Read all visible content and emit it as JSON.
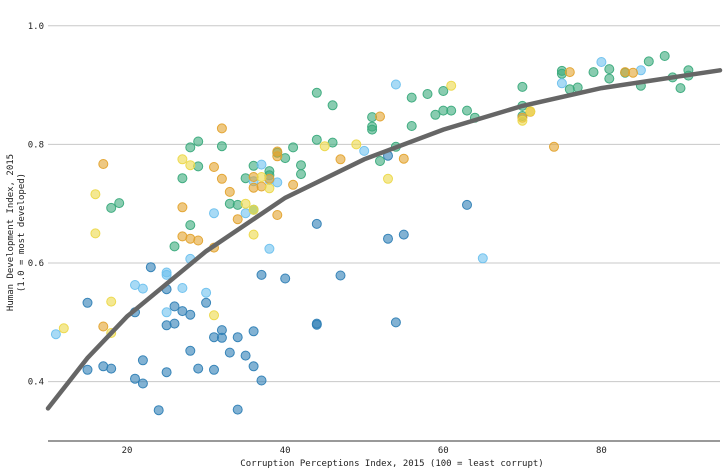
{
  "chart_data": {
    "type": "scatter",
    "title": "",
    "xlabel": "Corruption Perceptions Index, 2015 (100 = least corrupt)",
    "ylabel": "Human Development Index, 2015",
    "ylabel_sub": "(1.0 = most developed)",
    "xlim": [
      10,
      95
    ],
    "ylim": [
      0.3,
      1.03
    ],
    "x_ticks": [
      20,
      40,
      60,
      80
    ],
    "x_tick_labels": [
      "20",
      "40",
      "60",
      "80"
    ],
    "y_ticks": [
      0.4,
      0.6,
      0.8,
      1.0
    ],
    "y_tick_labels": [
      "0.4",
      "0.6",
      "0.8",
      "1.0"
    ],
    "grid": "horizontal",
    "legend": "none",
    "colors": {
      "teal": "#3aaa7c",
      "blue": "#2f7fb5",
      "lightblue": "#6ec1ee",
      "orange": "#e3a32e",
      "yellow": "#ecd84a",
      "trend": "#666666"
    },
    "trend_line": {
      "type": "logarithmic",
      "points": [
        [
          10,
          0.355
        ],
        [
          15,
          0.44
        ],
        [
          20,
          0.51
        ],
        [
          30,
          0.62
        ],
        [
          40,
          0.71
        ],
        [
          50,
          0.775
        ],
        [
          60,
          0.825
        ],
        [
          70,
          0.865
        ],
        [
          80,
          0.895
        ],
        [
          90,
          0.915
        ],
        [
          95,
          0.925
        ]
      ]
    },
    "series": [
      {
        "color_key": "teal",
        "points": [
          [
            18,
            0.693
          ],
          [
            19,
            0.701
          ],
          [
            26,
            0.628
          ],
          [
            27,
            0.743
          ],
          [
            28,
            0.795
          ],
          [
            29,
            0.763
          ],
          [
            29,
            0.805
          ],
          [
            32,
            0.797
          ],
          [
            28,
            0.664
          ],
          [
            33,
            0.7
          ],
          [
            34,
            0.698
          ],
          [
            35,
            0.743
          ],
          [
            36,
            0.764
          ],
          [
            36,
            0.69
          ],
          [
            38,
            0.755
          ],
          [
            38,
            0.748
          ],
          [
            39,
            0.786
          ],
          [
            40,
            0.777
          ],
          [
            41,
            0.795
          ],
          [
            42,
            0.765
          ],
          [
            42,
            0.75
          ],
          [
            44,
            0.808
          ],
          [
            44,
            0.887
          ],
          [
            46,
            0.803
          ],
          [
            46,
            0.866
          ],
          [
            51,
            0.846
          ],
          [
            51,
            0.83
          ],
          [
            51,
            0.825
          ],
          [
            52,
            0.772
          ],
          [
            54,
            0.796
          ],
          [
            56,
            0.879
          ],
          [
            56,
            0.831
          ],
          [
            58,
            0.885
          ],
          [
            59,
            0.85
          ],
          [
            60,
            0.89
          ],
          [
            60,
            0.857
          ],
          [
            61,
            0.857
          ],
          [
            63,
            0.857
          ],
          [
            64,
            0.845
          ],
          [
            70,
            0.897
          ],
          [
            70,
            0.865
          ],
          [
            70,
            0.848
          ],
          [
            75,
            0.924
          ],
          [
            75,
            0.919
          ],
          [
            76,
            0.893
          ],
          [
            77,
            0.896
          ],
          [
            79,
            0.922
          ],
          [
            81,
            0.927
          ],
          [
            81,
            0.911
          ],
          [
            85,
            0.899
          ],
          [
            86,
            0.94
          ],
          [
            88,
            0.949
          ],
          [
            89,
            0.913
          ],
          [
            90,
            0.895
          ],
          [
            91,
            0.925
          ],
          [
            91,
            0.916
          ],
          [
            83,
            0.921
          ]
        ]
      },
      {
        "color_key": "blue",
        "points": [
          [
            15,
            0.533
          ],
          [
            15,
            0.42
          ],
          [
            17,
            0.426
          ],
          [
            18,
            0.422
          ],
          [
            21,
            0.517
          ],
          [
            21,
            0.405
          ],
          [
            22,
            0.397
          ],
          [
            22,
            0.436
          ],
          [
            23,
            0.593
          ],
          [
            24,
            0.352
          ],
          [
            25,
            0.556
          ],
          [
            25,
            0.495
          ],
          [
            25,
            0.416
          ],
          [
            26,
            0.527
          ],
          [
            26,
            0.498
          ],
          [
            27,
            0.519
          ],
          [
            28,
            0.513
          ],
          [
            28,
            0.452
          ],
          [
            29,
            0.422
          ],
          [
            30,
            0.533
          ],
          [
            31,
            0.42
          ],
          [
            31,
            0.475
          ],
          [
            32,
            0.487
          ],
          [
            32,
            0.474
          ],
          [
            33,
            0.449
          ],
          [
            34,
            0.475
          ],
          [
            34,
            0.353
          ],
          [
            35,
            0.444
          ],
          [
            36,
            0.485
          ],
          [
            36,
            0.426
          ],
          [
            37,
            0.402
          ],
          [
            37,
            0.58
          ],
          [
            40,
            0.574
          ],
          [
            44,
            0.666
          ],
          [
            44,
            0.496
          ],
          [
            44,
            0.498
          ],
          [
            47,
            0.579
          ],
          [
            53,
            0.641
          ],
          [
            53,
            0.781
          ],
          [
            54,
            0.5
          ],
          [
            55,
            0.648
          ],
          [
            63,
            0.698
          ]
        ]
      },
      {
        "color_key": "lightblue",
        "points": [
          [
            11,
            0.48
          ],
          [
            21,
            0.563
          ],
          [
            22,
            0.557
          ],
          [
            25,
            0.584
          ],
          [
            25,
            0.58
          ],
          [
            25,
            0.517
          ],
          [
            27,
            0.558
          ],
          [
            28,
            0.607
          ],
          [
            30,
            0.55
          ],
          [
            31,
            0.684
          ],
          [
            35,
            0.684
          ],
          [
            36,
            0.738
          ],
          [
            37,
            0.766
          ],
          [
            38,
            0.74
          ],
          [
            38,
            0.624
          ],
          [
            39,
            0.736
          ],
          [
            50,
            0.789
          ],
          [
            54,
            0.901
          ],
          [
            65,
            0.608
          ],
          [
            75,
            0.903
          ],
          [
            80,
            0.939
          ],
          [
            85,
            0.925
          ]
        ]
      },
      {
        "color_key": "orange",
        "points": [
          [
            17,
            0.767
          ],
          [
            17,
            0.493
          ],
          [
            27,
            0.694
          ],
          [
            27,
            0.645
          ],
          [
            28,
            0.641
          ],
          [
            29,
            0.638
          ],
          [
            31,
            0.762
          ],
          [
            31,
            0.626
          ],
          [
            32,
            0.827
          ],
          [
            32,
            0.742
          ],
          [
            33,
            0.72
          ],
          [
            34,
            0.674
          ],
          [
            36,
            0.745
          ],
          [
            36,
            0.727
          ],
          [
            37,
            0.729
          ],
          [
            38,
            0.742
          ],
          [
            39,
            0.788
          ],
          [
            39,
            0.78
          ],
          [
            39,
            0.681
          ],
          [
            41,
            0.732
          ],
          [
            47,
            0.775
          ],
          [
            52,
            0.847
          ],
          [
            55,
            0.776
          ],
          [
            70,
            0.845
          ],
          [
            71,
            0.855
          ],
          [
            74,
            0.796
          ],
          [
            76,
            0.922
          ],
          [
            83,
            0.922
          ],
          [
            84,
            0.921
          ]
        ]
      },
      {
        "color_key": "yellow",
        "points": [
          [
            12,
            0.49
          ],
          [
            16,
            0.716
          ],
          [
            16,
            0.65
          ],
          [
            18,
            0.535
          ],
          [
            18,
            0.482
          ],
          [
            27,
            0.775
          ],
          [
            28,
            0.765
          ],
          [
            31,
            0.512
          ],
          [
            35,
            0.7
          ],
          [
            36,
            0.69
          ],
          [
            36,
            0.648
          ],
          [
            37,
            0.745
          ],
          [
            38,
            0.726
          ],
          [
            45,
            0.797
          ],
          [
            49,
            0.8
          ],
          [
            53,
            0.742
          ],
          [
            61,
            0.899
          ],
          [
            70,
            0.84
          ],
          [
            71,
            0.856
          ]
        ]
      }
    ]
  }
}
